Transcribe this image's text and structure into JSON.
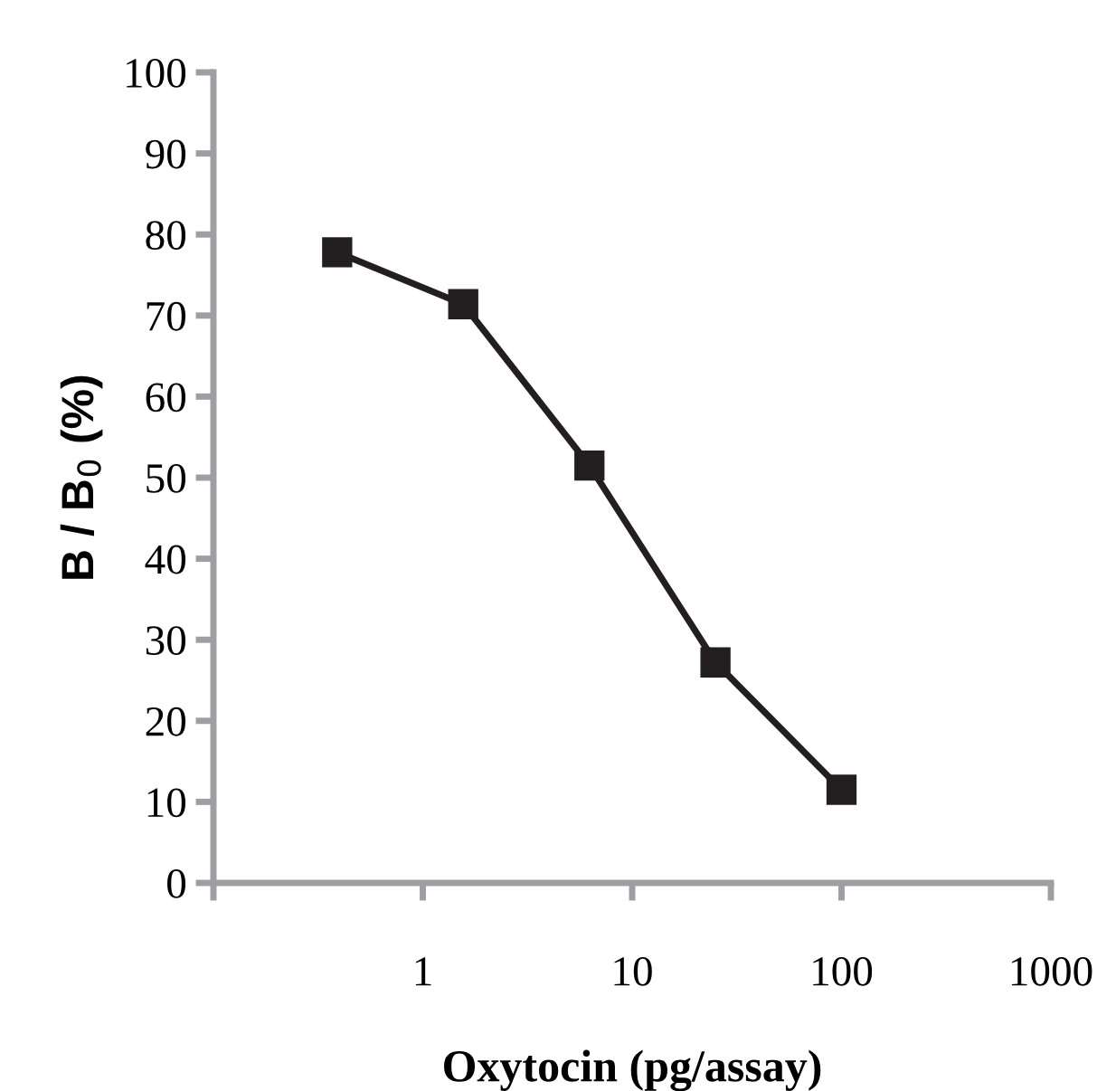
{
  "chart_data": {
    "type": "line",
    "xlabel": "Oxytocin (pg/assay)",
    "ylabel": "B / B$_{0}$ (%)",
    "x": [
      0.39,
      1.56,
      6.25,
      25,
      100
    ],
    "series": [
      {
        "color": "#231f20",
        "values": [
          77.8,
          71.4,
          51.5,
          27.2,
          11.5
        ]
      }
    ],
    "log": "x",
    "xlim": [
      0.1,
      1000
    ],
    "xticks": [
      {
        "value": 0.1,
        "label": null
      },
      1,
      10,
      100,
      1000
    ],
    "ylim": [
      0,
      100
    ],
    "yticks": [
      0,
      10,
      20,
      30,
      40,
      50,
      60,
      70,
      80,
      90,
      100
    ],
    "marker": "square",
    "line_style": "solid"
  }
}
